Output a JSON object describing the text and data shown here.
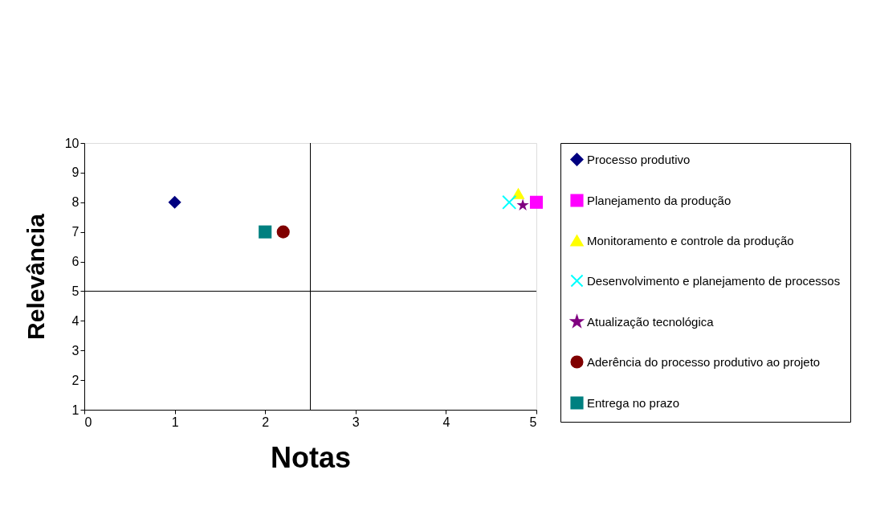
{
  "chart_data": {
    "type": "scatter",
    "xlabel": "Notas",
    "ylabel": "Relevância",
    "xlim": [
      0,
      5
    ],
    "xticks": [
      0,
      1,
      2,
      3,
      4,
      5
    ],
    "ylim": [
      1,
      10
    ],
    "yticks": [
      1,
      2,
      3,
      4,
      5,
      6,
      7,
      8,
      9,
      10
    ],
    "grid": false,
    "legend": "right",
    "ref_lines": [
      {
        "axis": "x",
        "value": 2.5,
        "color": "#000000"
      },
      {
        "axis": "y",
        "value": 5,
        "color": "#000000"
      }
    ],
    "series": [
      {
        "name": "Processo produtivo",
        "color": "#000080",
        "marker": "diamond",
        "x": [
          1
        ],
        "values": [
          8
        ]
      },
      {
        "name": "Planejamento da produção",
        "color": "#ff00ff",
        "marker": "square",
        "x": [
          5
        ],
        "values": [
          8
        ]
      },
      {
        "name": "Monitoramento e controle da produção",
        "color": "#ffff00",
        "marker": "triangle",
        "x": [
          4.8
        ],
        "values": [
          8.3
        ]
      },
      {
        "name": "Desenvolvimento e planejamento de processos",
        "color": "#00ffff",
        "marker": "cross",
        "x": [
          4.7
        ],
        "values": [
          8
        ]
      },
      {
        "name": "Atualização tecnológica",
        "color": "#800080",
        "marker": "star",
        "x": [
          4.85
        ],
        "values": [
          7.9
        ]
      },
      {
        "name": "Aderência do processo produtivo ao projeto",
        "color": "#800000",
        "marker": "circle",
        "x": [
          2.2
        ],
        "values": [
          7
        ]
      },
      {
        "name": "Entrega no prazo",
        "color": "#008080",
        "marker": "square",
        "x": [
          2
        ],
        "values": [
          7
        ]
      }
    ]
  }
}
